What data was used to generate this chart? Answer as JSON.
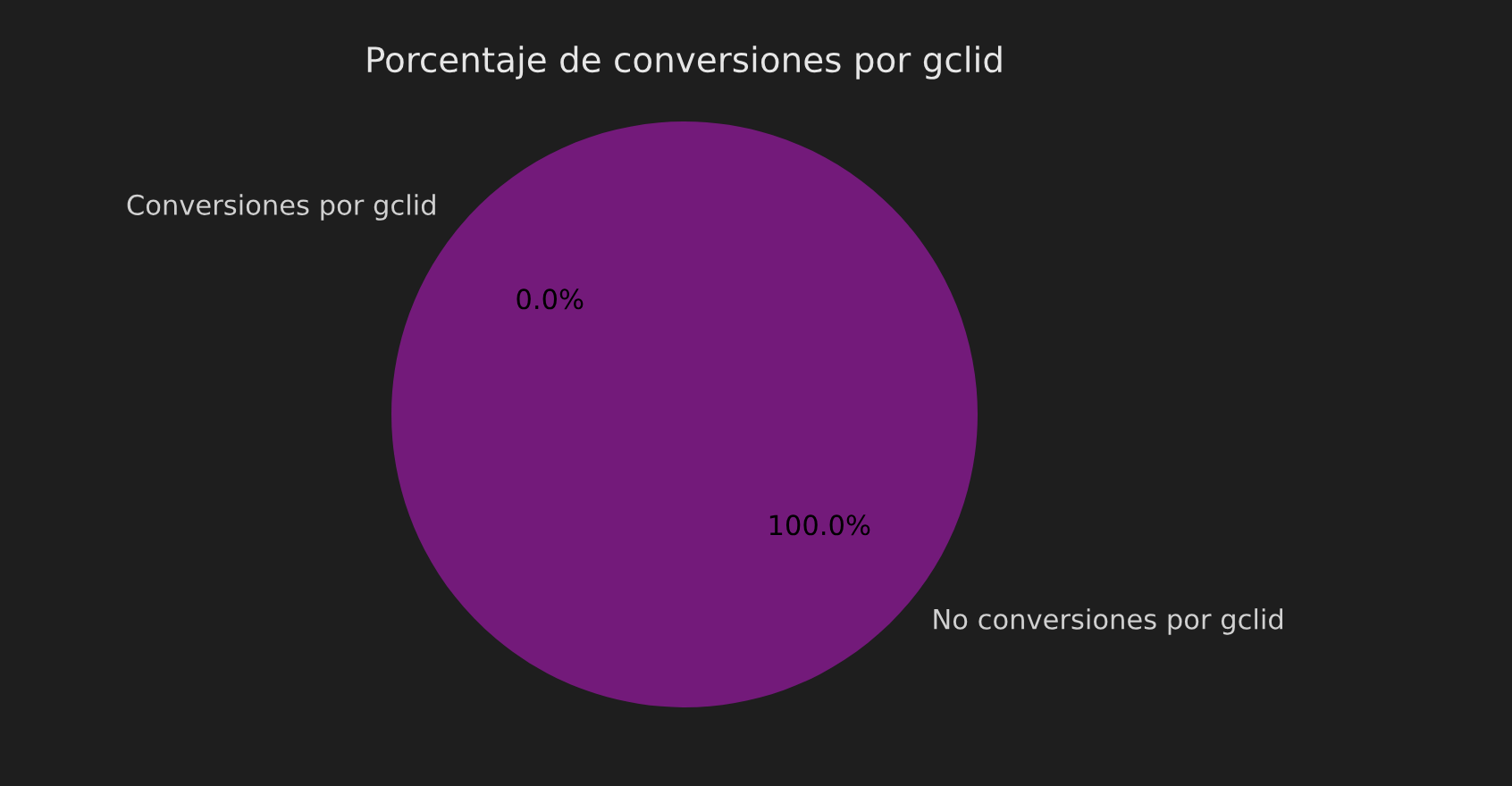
{
  "chart_data": {
    "type": "pie",
    "title": "Porcentaje de conversiones por gclid",
    "categories": [
      "Conversiones por gclid",
      "No conversiones por gclid"
    ],
    "values": [
      0,
      100
    ],
    "colors": [
      "#e07b39",
      "#731a7a"
    ],
    "value_labels": [
      "0.0%",
      "100.0%"
    ],
    "legend": false
  }
}
